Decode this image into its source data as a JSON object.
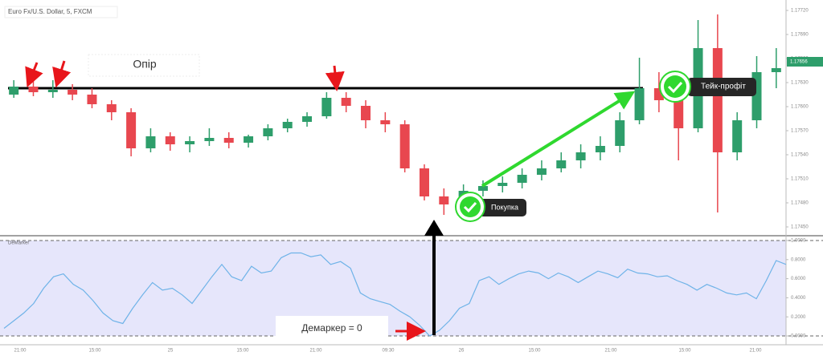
{
  "chart_data": [
    {
      "type": "candlestick",
      "title": "Euro Fx/U.S. Dollar, 5, FXCM",
      "open": [
        1.17615,
        1.17625,
        1.17618,
        1.17621,
        1.17615,
        1.17603,
        1.17593,
        1.17548,
        1.17563,
        1.17553,
        1.17557,
        1.17561,
        1.17555,
        1.17563,
        1.17573,
        1.17581,
        1.17588,
        1.17611,
        1.17601,
        1.17583,
        1.17578,
        1.17523,
        1.17488,
        1.17478,
        1.17495,
        1.17501,
        1.17505,
        1.17515,
        1.17523,
        1.17533,
        1.17543,
        1.17551,
        1.17583,
        1.17623,
        1.17608,
        1.17573,
        1.17673,
        1.17543,
        1.17583,
        1.17643
      ],
      "high": [
        1.17633,
        1.17638,
        1.17633,
        1.17628,
        1.17623,
        1.17608,
        1.17598,
        1.17573,
        1.17568,
        1.17563,
        1.17573,
        1.17568,
        1.17565,
        1.17578,
        1.17585,
        1.17593,
        1.17618,
        1.17618,
        1.17608,
        1.17593,
        1.17583,
        1.17528,
        1.17498,
        1.17503,
        1.17508,
        1.17513,
        1.17523,
        1.17533,
        1.17543,
        1.17553,
        1.17563,
        1.17593,
        1.17661,
        1.17643,
        1.17623,
        1.17708,
        1.17715,
        1.17593,
        1.17663,
        1.17673
      ],
      "low": [
        1.17611,
        1.17613,
        1.17611,
        1.17608,
        1.17598,
        1.17583,
        1.17538,
        1.17543,
        1.17545,
        1.17543,
        1.17551,
        1.17548,
        1.17549,
        1.17558,
        1.17568,
        1.17575,
        1.17585,
        1.17593,
        1.17573,
        1.17568,
        1.17518,
        1.17483,
        1.17465,
        1.17473,
        1.17488,
        1.17493,
        1.17498,
        1.17508,
        1.17518,
        1.17523,
        1.17533,
        1.17543,
        1.17578,
        1.17593,
        1.17533,
        1.17568,
        1.17468,
        1.17533,
        1.17573,
        1.17623
      ],
      "close": [
        1.17625,
        1.17618,
        1.17621,
        1.17615,
        1.17603,
        1.17593,
        1.17548,
        1.17563,
        1.17553,
        1.17557,
        1.17561,
        1.17555,
        1.17563,
        1.17573,
        1.17581,
        1.17588,
        1.17611,
        1.17601,
        1.17583,
        1.17578,
        1.17523,
        1.17488,
        1.17478,
        1.17495,
        1.17501,
        1.17505,
        1.17515,
        1.17523,
        1.17533,
        1.17543,
        1.17551,
        1.17583,
        1.17623,
        1.17608,
        1.17573,
        1.17673,
        1.17543,
        1.17583,
        1.17643,
        1.17648
      ],
      "up_color": "#2e9e6b",
      "down_color": "#e8474f",
      "ylim": [
        1.1744,
        1.17733
      ],
      "yticks": [
        {
          "value": 1.1772,
          "label": "1.17720"
        },
        {
          "value": 1.1769,
          "label": "1.17690"
        },
        {
          "value": 1.1766,
          "label": "1.17660"
        },
        {
          "value": 1.1763,
          "label": "1.17630"
        },
        {
          "value": 1.176,
          "label": "1.17600"
        },
        {
          "value": 1.1757,
          "label": "1.17570"
        },
        {
          "value": 1.1754,
          "label": "1.17540"
        },
        {
          "value": 1.1751,
          "label": "1.17510"
        },
        {
          "value": 1.1748,
          "label": "1.17480"
        },
        {
          "value": 1.1745,
          "label": "1.17450"
        }
      ],
      "last_price": 1.17656,
      "resistance": 1.17623,
      "resistance_label": "Опір",
      "take_profit_label": "Тейк-профіт",
      "buy_label": "Покупка"
    },
    {
      "type": "line",
      "title": "DeMarker",
      "color": "#6fb3e8",
      "band_color": "#e6e6fb",
      "values": [
        0.08,
        0.16,
        0.24,
        0.34,
        0.5,
        0.62,
        0.65,
        0.54,
        0.48,
        0.37,
        0.24,
        0.16,
        0.13,
        0.29,
        0.43,
        0.56,
        0.48,
        0.5,
        0.43,
        0.34,
        0.48,
        0.62,
        0.75,
        0.62,
        0.58,
        0.73,
        0.66,
        0.68,
        0.82,
        0.87,
        0.87,
        0.83,
        0.85,
        0.75,
        0.78,
        0.71,
        0.45,
        0.39,
        0.36,
        0.33,
        0.26,
        0.2,
        0.11,
        0,
        0.06,
        0.16,
        0.29,
        0.34,
        0.58,
        0.62,
        0.54,
        0.6,
        0.65,
        0.68,
        0.66,
        0.6,
        0.66,
        0.62,
        0.56,
        0.62,
        0.68,
        0.65,
        0.61,
        0.7,
        0.66,
        0.65,
        0.62,
        0.63,
        0.58,
        0.54,
        0.48,
        0.54,
        0.5,
        0.45,
        0.43,
        0.45,
        0.39,
        0.58,
        0.79,
        0.75
      ],
      "ylim": [
        0,
        1
      ],
      "yticks": [
        {
          "value": 1,
          "label": "1.0000"
        },
        {
          "value": 0.8,
          "label": "0.8000"
        },
        {
          "value": 0.6,
          "label": "0.6000"
        },
        {
          "value": 0.4,
          "label": "0.4000"
        },
        {
          "value": 0.2,
          "label": "0.2000"
        },
        {
          "value": 0,
          "label": "0.0000"
        }
      ],
      "annotation": "Демаркер = 0",
      "x_labels": [
        "21:00",
        "15:00",
        "25",
        "15:00",
        "21:00",
        "09:30",
        "26",
        "15:00",
        "21:00",
        "15:00",
        "21:00"
      ]
    }
  ]
}
